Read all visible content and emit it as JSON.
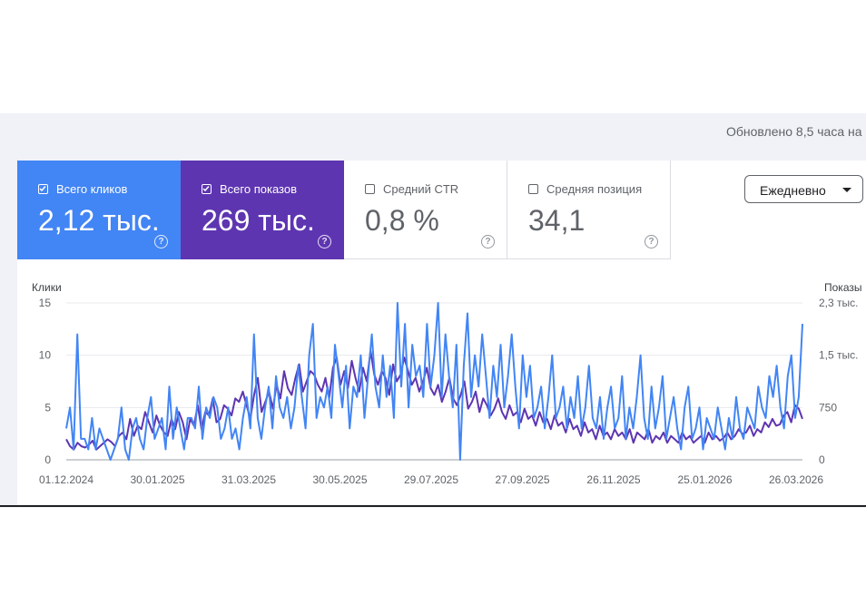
{
  "header": {
    "updated": "Обновлено 8,5 часа на"
  },
  "cards": [
    {
      "label": "Всего кликов",
      "value": "2,12 тыс.",
      "checked": true,
      "color": "#4285f4"
    },
    {
      "label": "Всего показов",
      "value": "269 тыс.",
      "checked": true,
      "color": "#5e35b1"
    },
    {
      "label": "Средний CTR",
      "value": "0,8 %",
      "checked": false
    },
    {
      "label": "Средняя позиция",
      "value": "34,1",
      "checked": false
    }
  ],
  "help_glyph": "?",
  "granularity": {
    "selected": "Ежедневно"
  },
  "chart_data": {
    "type": "line",
    "left_axis": {
      "title": "Клики",
      "ticks": [
        "0",
        "5",
        "10",
        "15"
      ],
      "ylim": [
        0,
        15
      ]
    },
    "right_axis": {
      "title": "Показы",
      "ticks": [
        "0",
        "750",
        "1,5 тыс.",
        "2,3 тыс."
      ],
      "ylim": [
        0,
        2300
      ]
    },
    "x_tick_labels": [
      "01.12.2024",
      "30.01.2025",
      "31.03.2025",
      "30.05.2025",
      "29.07.2025",
      "27.09.2025",
      "26.11.2025",
      "25.01.2026",
      "26.03.2026"
    ],
    "x_range": [
      "01.12.2024",
      "01.04.2026"
    ],
    "grid": true,
    "series": [
      {
        "name": "Клики",
        "axis": "left",
        "color": "#4285f4",
        "sampling": "every 3 days",
        "values": [
          3,
          5,
          1,
          12,
          2,
          2,
          1,
          4,
          1,
          3,
          2,
          1,
          0,
          1,
          2,
          5,
          1,
          0,
          3,
          4,
          2,
          1,
          4,
          6,
          2,
          3,
          4,
          1,
          7,
          2,
          5,
          3,
          1,
          4,
          4,
          3,
          7,
          2,
          5,
          4,
          6,
          5,
          2,
          3,
          5,
          2,
          3,
          1,
          4,
          6,
          3,
          12,
          4,
          2,
          5,
          7,
          3,
          8,
          5,
          4,
          6,
          3,
          5,
          9,
          6,
          3,
          10,
          13,
          4,
          6,
          5,
          7,
          4,
          11,
          8,
          5,
          9,
          3,
          7,
          6,
          10,
          4,
          8,
          12,
          7,
          5,
          10,
          6,
          9,
          4,
          15,
          7,
          13,
          5,
          11,
          8,
          9,
          6,
          13,
          7,
          10,
          15,
          6,
          12,
          8,
          5,
          11,
          0,
          9,
          14,
          6,
          10,
          7,
          12,
          8,
          4,
          9,
          6,
          11,
          5,
          8,
          12,
          7,
          3,
          10,
          6,
          9,
          4,
          5,
          7,
          3,
          6,
          10,
          4,
          5,
          7,
          3,
          6,
          4,
          8,
          3,
          5,
          9,
          4,
          3,
          6,
          2,
          5,
          7,
          3,
          4,
          8,
          2,
          5,
          3,
          6,
          10,
          4,
          2,
          7,
          3,
          5,
          8,
          2,
          4,
          6,
          3,
          1,
          5,
          7,
          2,
          3,
          5,
          1,
          4,
          3,
          2,
          5,
          3,
          1,
          4,
          2,
          6,
          3,
          2,
          5,
          4,
          3,
          7,
          5,
          4,
          8,
          6,
          9,
          5,
          3,
          8,
          10,
          4,
          6,
          13
        ]
      },
      {
        "name": "Показы",
        "axis": "right",
        "color": "#5e35b1",
        "sampling": "every 3 days",
        "values": [
          300,
          200,
          150,
          250,
          200,
          180,
          220,
          280,
          150,
          200,
          250,
          300,
          260,
          200,
          350,
          400,
          300,
          600,
          350,
          500,
          450,
          700,
          550,
          400,
          650,
          500,
          400,
          350,
          600,
          450,
          700,
          550,
          300,
          600,
          500,
          800,
          450,
          700,
          650,
          900,
          550,
          600,
          800,
          750,
          650,
          900,
          850,
          1000,
          800,
          600,
          950,
          1200,
          700,
          850,
          1000,
          750,
          1100,
          900,
          1300,
          1050,
          950,
          1200,
          1400,
          1000,
          1150,
          1300,
          1250,
          1100,
          1000,
          1200,
          900,
          1350,
          1500,
          1100,
          1300,
          1050,
          1450,
          1200,
          1000,
          1350,
          1150,
          1600,
          1250,
          1100,
          1300,
          1200,
          950,
          1400,
          1150,
          1250,
          1500,
          1300,
          1100,
          1200,
          1000,
          1150,
          1350,
          1050,
          950,
          1100,
          850,
          1000,
          1200,
          900,
          800,
          950,
          1150,
          750,
          850,
          1000,
          700,
          900,
          800,
          650,
          750,
          900,
          700,
          600,
          800,
          650,
          700,
          550,
          750,
          600,
          650,
          500,
          700,
          550,
          600,
          450,
          650,
          500,
          550,
          400,
          600,
          450,
          500,
          350,
          550,
          400,
          450,
          300,
          500,
          350,
          400,
          300,
          450,
          350,
          400,
          300,
          450,
          250,
          400,
          350,
          300,
          450,
          250,
          350,
          300,
          400,
          250,
          350,
          300,
          250,
          400,
          300,
          350,
          250,
          300,
          350,
          250,
          400,
          300,
          350,
          280,
          320,
          400,
          300,
          350,
          450,
          380,
          400,
          500,
          350,
          450,
          400,
          550,
          480,
          600,
          500,
          520,
          650,
          700,
          550,
          800,
          750,
          600
        ]
      }
    ]
  }
}
